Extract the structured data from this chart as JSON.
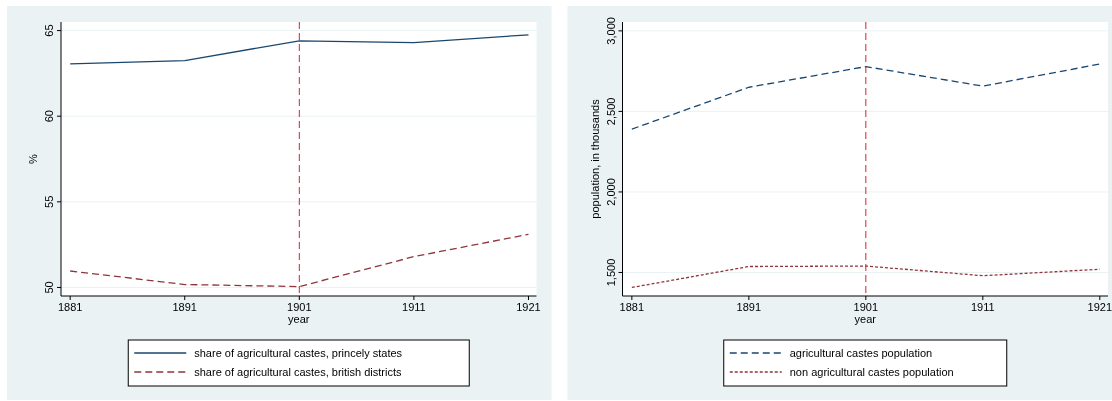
{
  "chart_data": [
    {
      "type": "line",
      "x": [
        1881,
        1891,
        1901,
        1911,
        1921
      ],
      "xlabel": "year",
      "ylabel": "%",
      "xlim": [
        1880.2,
        1921.7
      ],
      "xticks": [
        1881,
        1891,
        1901,
        1911,
        1921
      ],
      "ylim": [
        49.5,
        65.5
      ],
      "yticks": [
        50,
        55,
        60,
        65
      ],
      "grid": "y",
      "legend": "bottom",
      "series": [
        {
          "name": "share of agricultural castes, princely states",
          "color": "#1a476f",
          "line_style": "solid",
          "values": [
            63.06,
            63.25,
            64.4,
            64.3,
            64.75
          ]
        },
        {
          "name": "share of agricultural castes, british districts",
          "color": "#90353b",
          "line_style": "dashed",
          "values": [
            50.96,
            50.17,
            50.05,
            51.8,
            53.1
          ]
        }
      ],
      "ref_lines": [
        {
          "axis": "x",
          "value": 1901,
          "color": "#d62030",
          "line_style": "dashed"
        }
      ]
    },
    {
      "type": "line",
      "x": [
        1881,
        1891,
        1901,
        1911,
        1921
      ],
      "xlabel": "year",
      "ylabel": "population, in thousands",
      "xlim": [
        1880.2,
        1921.7
      ],
      "xticks": [
        1881,
        1891,
        1901,
        1911,
        1921
      ],
      "ylim": [
        1354,
        3055
      ],
      "yticks": [
        {
          "value": 1500,
          "label": "1,500"
        },
        {
          "value": 2000,
          "label": "2,000"
        },
        {
          "value": 2500,
          "label": "2,500"
        },
        {
          "value": 3000,
          "label": "3,000"
        }
      ],
      "grid": "y",
      "legend": "bottom",
      "series": [
        {
          "name": "agricultural castes population",
          "color": "#1a476f",
          "line_style": "dashed",
          "values": [
            2390,
            2650,
            2778,
            2657,
            2794
          ]
        },
        {
          "name": "non agricultural castes population",
          "color": "#90353b",
          "line_style": "dotted",
          "values": [
            1407,
            1537,
            1540,
            1480,
            1520
          ]
        }
      ],
      "ref_lines": [
        {
          "axis": "x",
          "value": 1901,
          "color": "#d62030",
          "line_style": "dashed"
        }
      ]
    }
  ]
}
